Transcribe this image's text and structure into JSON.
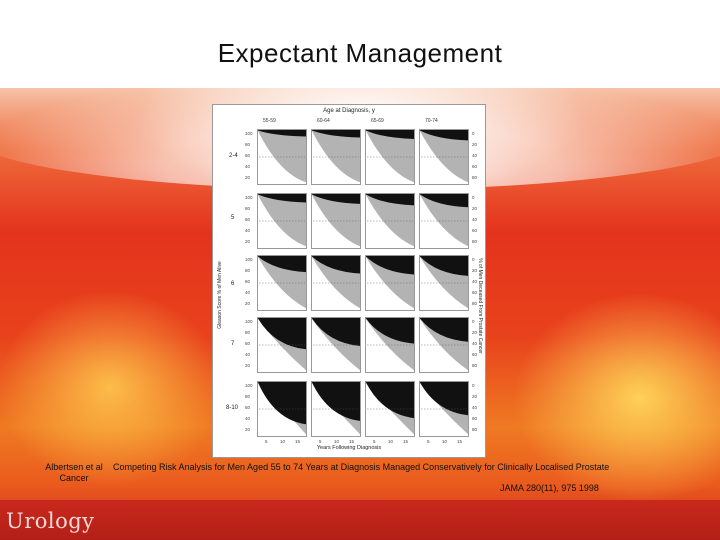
{
  "slide": {
    "title": "Expectant Management",
    "logo_text": "Urology"
  },
  "figure": {
    "header": "Age at Diagnosis, y",
    "age_groups": [
      "55-59",
      "60-64",
      "65-69",
      "70-74"
    ],
    "gleason_groups": [
      "2-4",
      "5",
      "6",
      "7",
      "8-10"
    ],
    "y_left_label": "Gleason Score % of Men Alive",
    "y_right_label": "% of Men Deceased From Prostate Cancer",
    "x_label": "Years Following Diagnosis",
    "left_ticks": [
      "100",
      "80",
      "60",
      "40",
      "20"
    ],
    "right_ticks": [
      "0",
      "20",
      "40",
      "60",
      "80"
    ],
    "x_ticks": [
      "5",
      "10",
      "15"
    ]
  },
  "citation": {
    "author": "Albertsen et al Cancer",
    "title": "Competing Risk Analysis for Men Aged 55 to 74 Years at Diagnosis Managed Conservatively for Clinically Localised Prostate",
    "journal": "JAMA 280(11), 975 1998"
  }
}
